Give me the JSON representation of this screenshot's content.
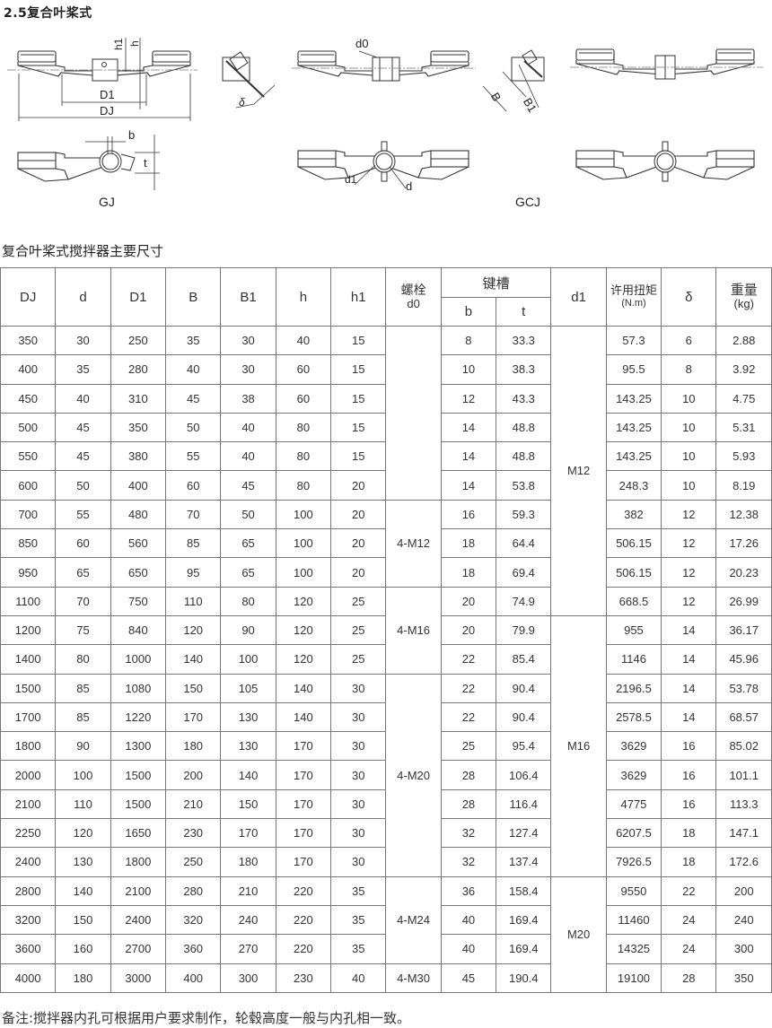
{
  "title": "2.5复合叶桨式",
  "drawings": {
    "labels": {
      "h1": "h1",
      "h": "h",
      "D1": "D1",
      "DJ": "DJ",
      "b": "b",
      "t": "t",
      "delta": "δ",
      "d0": "d0",
      "B": "B",
      "B1": "B1",
      "d1": "d1",
      "d": "d"
    },
    "type_gj": "GJ",
    "type_gcj": "GCJ"
  },
  "caption": "复合叶桨式搅拌器主要尺寸",
  "table": {
    "headers": {
      "DJ": "DJ",
      "d": "d",
      "D1": "D1",
      "B": "B",
      "B1": "B1",
      "h": "h",
      "h1": "h1",
      "d0_top": "螺栓",
      "d0_bottom": "d0",
      "keyway": "键槽",
      "b": "b",
      "t": "t",
      "d1": "d1",
      "torque_top": "许用扭矩",
      "torque_unit": "(N.m)",
      "delta": "δ",
      "weight_top": "重量",
      "weight_unit": "(kg)"
    },
    "rows": [
      {
        "DJ": "350",
        "d": "30",
        "D1": "250",
        "B": "35",
        "B1": "30",
        "h": "40",
        "h1": "15",
        "d0": "",
        "b": "8",
        "t": "33.3",
        "d1": "M12",
        "torque": "57.3",
        "delta": "6",
        "weight": "2.88"
      },
      {
        "DJ": "400",
        "d": "35",
        "D1": "280",
        "B": "40",
        "B1": "30",
        "h": "60",
        "h1": "15",
        "d0": "",
        "b": "10",
        "t": "38.3",
        "d1": "M12",
        "torque": "95.5",
        "delta": "8",
        "weight": "3.92"
      },
      {
        "DJ": "450",
        "d": "40",
        "D1": "310",
        "B": "45",
        "B1": "38",
        "h": "60",
        "h1": "15",
        "d0": "",
        "b": "12",
        "t": "43.3",
        "d1": "M12",
        "torque": "143.25",
        "delta": "10",
        "weight": "4.75"
      },
      {
        "DJ": "500",
        "d": "45",
        "D1": "350",
        "B": "50",
        "B1": "40",
        "h": "80",
        "h1": "15",
        "d0": "",
        "b": "14",
        "t": "48.8",
        "d1": "M12",
        "torque": "143.25",
        "delta": "10",
        "weight": "5.31"
      },
      {
        "DJ": "550",
        "d": "45",
        "D1": "380",
        "B": "55",
        "B1": "40",
        "h": "80",
        "h1": "15",
        "d0": "",
        "b": "14",
        "t": "48.8",
        "d1": "M12",
        "torque": "143.25",
        "delta": "10",
        "weight": "5.93"
      },
      {
        "DJ": "600",
        "d": "50",
        "D1": "400",
        "B": "60",
        "B1": "45",
        "h": "80",
        "h1": "20",
        "d0": "",
        "b": "14",
        "t": "53.8",
        "d1": "M12",
        "torque": "248.3",
        "delta": "10",
        "weight": "8.19"
      },
      {
        "DJ": "700",
        "d": "55",
        "D1": "480",
        "B": "70",
        "B1": "50",
        "h": "100",
        "h1": "20",
        "d0": "4-M12",
        "b": "16",
        "t": "59.3",
        "d1": "M12",
        "torque": "382",
        "delta": "12",
        "weight": "12.38"
      },
      {
        "DJ": "850",
        "d": "60",
        "D1": "560",
        "B": "85",
        "B1": "65",
        "h": "100",
        "h1": "20",
        "d0": "4-M12",
        "b": "18",
        "t": "64.4",
        "d1": "M12",
        "torque": "506.15",
        "delta": "12",
        "weight": "17.26"
      },
      {
        "DJ": "950",
        "d": "65",
        "D1": "650",
        "B": "95",
        "B1": "65",
        "h": "100",
        "h1": "20",
        "d0": "4-M12",
        "b": "18",
        "t": "69.4",
        "d1": "M12",
        "torque": "506.15",
        "delta": "12",
        "weight": "20.23"
      },
      {
        "DJ": "1100",
        "d": "70",
        "D1": "750",
        "B": "110",
        "B1": "80",
        "h": "120",
        "h1": "25",
        "d0": "4-M16",
        "b": "20",
        "t": "74.9",
        "d1": "M12",
        "torque": "668.5",
        "delta": "12",
        "weight": "26.99"
      },
      {
        "DJ": "1200",
        "d": "75",
        "D1": "840",
        "B": "120",
        "B1": "90",
        "h": "120",
        "h1": "25",
        "d0": "4-M16",
        "b": "20",
        "t": "79.9",
        "d1": "M16",
        "torque": "955",
        "delta": "14",
        "weight": "36.17"
      },
      {
        "DJ": "1400",
        "d": "80",
        "D1": "1000",
        "B": "140",
        "B1": "100",
        "h": "120",
        "h1": "25",
        "d0": "4-M16",
        "b": "22",
        "t": "85.4",
        "d1": "M16",
        "torque": "1146",
        "delta": "14",
        "weight": "45.96"
      },
      {
        "DJ": "1500",
        "d": "85",
        "D1": "1080",
        "B": "150",
        "B1": "105",
        "h": "140",
        "h1": "30",
        "d0": "4-M20",
        "b": "22",
        "t": "90.4",
        "d1": "M16",
        "torque": "2196.5",
        "delta": "14",
        "weight": "53.78"
      },
      {
        "DJ": "1700",
        "d": "85",
        "D1": "1220",
        "B": "170",
        "B1": "130",
        "h": "140",
        "h1": "30",
        "d0": "4-M20",
        "b": "22",
        "t": "90.4",
        "d1": "M16",
        "torque": "2578.5",
        "delta": "14",
        "weight": "68.57"
      },
      {
        "DJ": "1800",
        "d": "90",
        "D1": "1300",
        "B": "180",
        "B1": "130",
        "h": "170",
        "h1": "30",
        "d0": "4-M20",
        "b": "25",
        "t": "95.4",
        "d1": "M16",
        "torque": "3629",
        "delta": "16",
        "weight": "85.02"
      },
      {
        "DJ": "2000",
        "d": "100",
        "D1": "1500",
        "B": "200",
        "B1": "140",
        "h": "170",
        "h1": "30",
        "d0": "4-M20",
        "b": "28",
        "t": "106.4",
        "d1": "M16",
        "torque": "3629",
        "delta": "16",
        "weight": "101.1"
      },
      {
        "DJ": "2100",
        "d": "110",
        "D1": "1500",
        "B": "210",
        "B1": "150",
        "h": "170",
        "h1": "30",
        "d0": "4-M20",
        "b": "28",
        "t": "116.4",
        "d1": "M16",
        "torque": "4775",
        "delta": "16",
        "weight": "113.3"
      },
      {
        "DJ": "2250",
        "d": "120",
        "D1": "1650",
        "B": "230",
        "B1": "170",
        "h": "170",
        "h1": "30",
        "d0": "4-M20",
        "b": "32",
        "t": "127.4",
        "d1": "M16",
        "torque": "6207.5",
        "delta": "18",
        "weight": "147.1"
      },
      {
        "DJ": "2400",
        "d": "130",
        "D1": "1800",
        "B": "250",
        "B1": "180",
        "h": "170",
        "h1": "30",
        "d0": "4-M20",
        "b": "32",
        "t": "137.4",
        "d1": "M16",
        "torque": "7926.5",
        "delta": "18",
        "weight": "172.6"
      },
      {
        "DJ": "2800",
        "d": "140",
        "D1": "2100",
        "B": "280",
        "B1": "210",
        "h": "220",
        "h1": "35",
        "d0": "4-M24",
        "b": "36",
        "t": "158.4",
        "d1": "M20",
        "torque": "9550",
        "delta": "22",
        "weight": "200"
      },
      {
        "DJ": "3200",
        "d": "150",
        "D1": "2400",
        "B": "320",
        "B1": "240",
        "h": "220",
        "h1": "35",
        "d0": "4-M24",
        "b": "40",
        "t": "169.4",
        "d1": "M20",
        "torque": "11460",
        "delta": "24",
        "weight": "240"
      },
      {
        "DJ": "3600",
        "d": "160",
        "D1": "2700",
        "B": "360",
        "B1": "270",
        "h": "220",
        "h1": "35",
        "d0": "4-M24",
        "b": "40",
        "t": "169.4",
        "d1": "M20",
        "torque": "14325",
        "delta": "24",
        "weight": "300"
      },
      {
        "DJ": "4000",
        "d": "180",
        "D1": "3000",
        "B": "400",
        "B1": "300",
        "h": "230",
        "h1": "40",
        "d0": "4-M30",
        "b": "45",
        "t": "190.4",
        "d1": "M20",
        "torque": "19100",
        "delta": "28",
        "weight": "350"
      }
    ]
  },
  "footnote": "备注:搅拌器内孔可根据用户要求制作，轮毂高度一般与内孔相一致。"
}
